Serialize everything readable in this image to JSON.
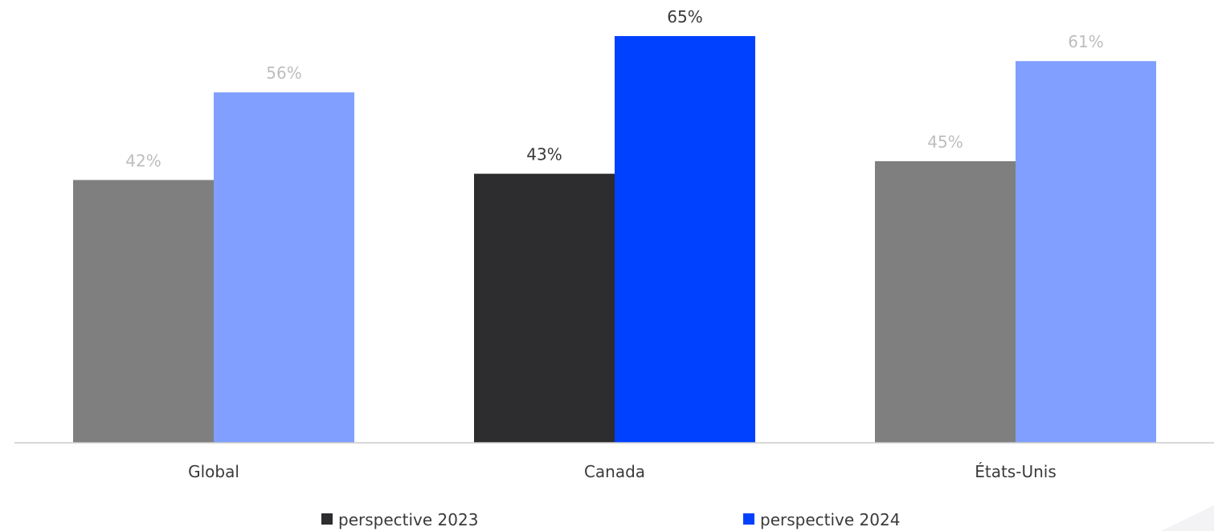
{
  "chart_data": {
    "type": "bar",
    "categories": [
      "Global",
      "Canada",
      "États-Unis"
    ],
    "series": [
      {
        "name": "perspective 2023",
        "values": [
          42,
          43,
          45
        ],
        "value_labels": [
          "42%",
          "43%",
          "45%"
        ],
        "legend_color": "#2d2d30",
        "bar_colors": [
          "#7f7f7f",
          "#2d2d30",
          "#7f7f7f"
        ],
        "label_colors": [
          "#bdbdbd",
          "#3a3a3a",
          "#bdbdbd"
        ]
      },
      {
        "name": "perspective 2024",
        "values": [
          56,
          65,
          61
        ],
        "value_labels": [
          "56%",
          "65%",
          "61%"
        ],
        "legend_color": "#0041ff",
        "bar_colors": [
          "#809fff",
          "#0041ff",
          "#809fff"
        ],
        "label_colors": [
          "#bdbdbd",
          "#3a3a3a",
          "#bdbdbd"
        ]
      }
    ],
    "title": "",
    "xlabel": "",
    "ylabel": "",
    "ylim": [
      0,
      65
    ],
    "grid": false,
    "legend_position": "bottom",
    "highlighted_category": "Canada"
  },
  "colors": {
    "axis": "#cccccc",
    "text": "#3a3a3a",
    "muted_text": "#bdbdbd"
  }
}
